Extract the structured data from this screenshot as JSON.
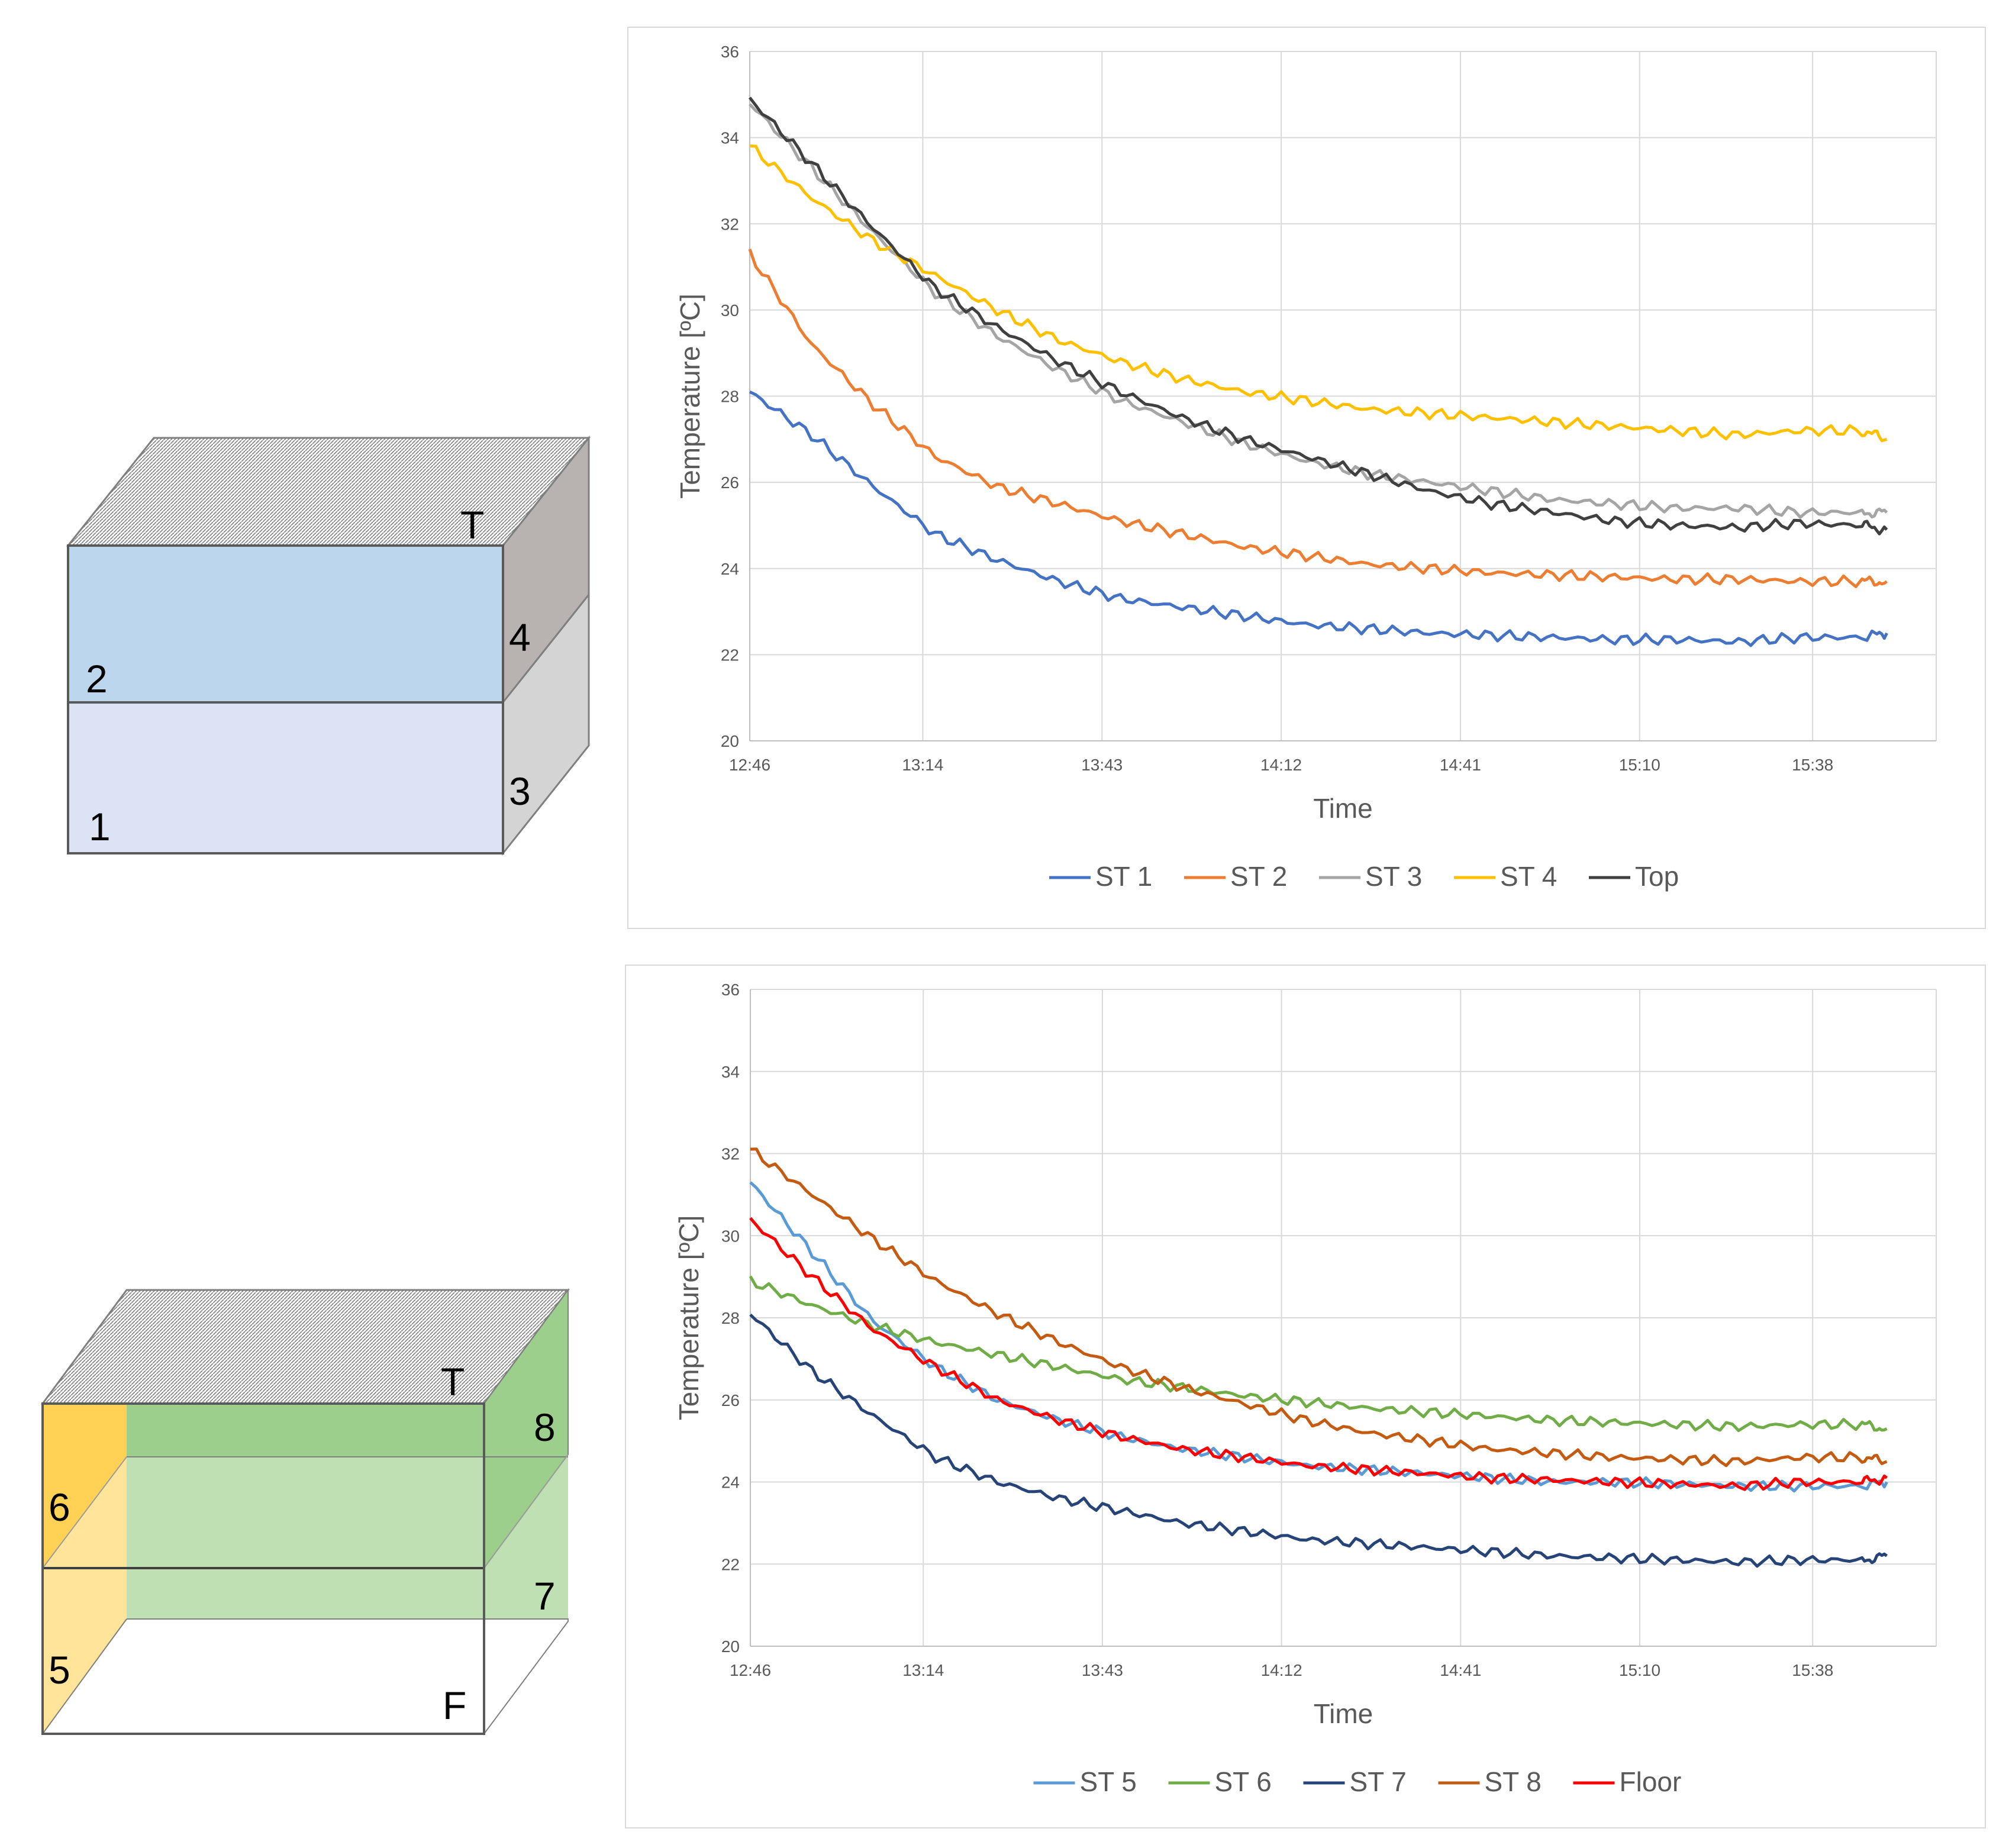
{
  "diagram_top": {
    "face_labels": [
      "T",
      "4",
      "2",
      "3",
      "1"
    ],
    "colors": {
      "front_upper": "#bcd6ee",
      "front_lower": "#dce3f4",
      "side_upper": "#b8b3b1",
      "side_lower": "#d4d4d4",
      "outline": "#595959"
    }
  },
  "diagram_bottom": {
    "face_labels": [
      "T",
      "8",
      "6",
      "7",
      "5",
      "F"
    ],
    "colors": {
      "green": "#9ccf8b",
      "green_light": "#bfe0b2",
      "yellow": "#ffd154",
      "yellow_light": "#ffe49a",
      "outline": "#595959"
    }
  },
  "chart_data": [
    {
      "type": "line",
      "title": "",
      "xlabel": "Time",
      "ylabel": "Temperature [ºC]",
      "ylim": [
        20,
        36
      ],
      "yticks": [
        20,
        22,
        24,
        26,
        28,
        30,
        32,
        34,
        36
      ],
      "xlim": [
        0,
        192
      ],
      "xtick_positions": [
        0,
        28,
        57,
        86,
        115,
        144,
        172
      ],
      "xtick_labels": [
        "12:46",
        "13:14",
        "13:43",
        "14:12",
        "14:41",
        "15:10",
        "15:38"
      ],
      "x": [
        0,
        10,
        20,
        30,
        40,
        50,
        60,
        70,
        80,
        90,
        100,
        110,
        120,
        130,
        140,
        150,
        160,
        170,
        180,
        184
      ],
      "series": [
        {
          "name": "ST 1",
          "color": "#4472c4",
          "values": [
            28.1,
            27.1,
            25.9,
            24.8,
            24.2,
            23.7,
            23.3,
            23.1,
            22.9,
            22.7,
            22.6,
            22.5,
            22.45,
            22.4,
            22.35,
            22.35,
            22.3,
            22.4,
            22.4,
            22.5
          ]
        },
        {
          "name": "ST 2",
          "color": "#ed7d31",
          "values": [
            31.3,
            29.2,
            27.8,
            26.6,
            25.9,
            25.5,
            25.1,
            24.8,
            24.5,
            24.3,
            24.1,
            24.0,
            23.9,
            23.85,
            23.8,
            23.75,
            23.75,
            23.7,
            23.7,
            23.7
          ]
        },
        {
          "name": "ST 3",
          "color": "#a5a5a5",
          "values": [
            34.8,
            33.3,
            31.8,
            30.4,
            29.4,
            28.6,
            27.9,
            27.4,
            26.9,
            26.5,
            26.2,
            26.0,
            25.8,
            25.6,
            25.5,
            25.4,
            25.4,
            25.3,
            25.3,
            25.3
          ]
        },
        {
          "name": "ST 4",
          "color": "#ffc000",
          "values": [
            33.8,
            32.6,
            31.6,
            30.8,
            30.0,
            29.3,
            28.8,
            28.4,
            28.1,
            27.9,
            27.7,
            27.6,
            27.5,
            27.4,
            27.3,
            27.2,
            27.1,
            27.2,
            27.2,
            27.0
          ]
        },
        {
          "name": "Top",
          "color": "#404040",
          "values": [
            34.9,
            33.4,
            31.9,
            30.5,
            29.6,
            28.8,
            28.1,
            27.5,
            27.0,
            26.6,
            26.2,
            25.8,
            25.5,
            25.3,
            25.1,
            25.0,
            24.95,
            25.05,
            25.0,
            24.9
          ]
        }
      ],
      "legend_position": "bottom"
    },
    {
      "type": "line",
      "title": "",
      "xlabel": "Time",
      "ylabel": "Temperature [ºC]",
      "ylim": [
        20,
        36
      ],
      "yticks": [
        20,
        22,
        24,
        26,
        28,
        30,
        32,
        34,
        36
      ],
      "xlim": [
        0,
        192
      ],
      "xtick_positions": [
        0,
        28,
        57,
        86,
        115,
        144,
        172
      ],
      "xtick_labels": [
        "12:46",
        "13:14",
        "13:43",
        "14:12",
        "14:41",
        "15:10",
        "15:38"
      ],
      "x": [
        0,
        10,
        20,
        30,
        40,
        50,
        60,
        70,
        80,
        90,
        100,
        110,
        120,
        130,
        140,
        150,
        160,
        170,
        180,
        184
      ],
      "series": [
        {
          "name": "ST 5",
          "color": "#5b9bd5",
          "values": [
            31.3,
            29.6,
            27.9,
            26.8,
            26.0,
            25.5,
            25.1,
            24.8,
            24.6,
            24.4,
            24.3,
            24.2,
            24.1,
            24.0,
            24.0,
            23.95,
            23.9,
            23.9,
            23.9,
            24.0
          ]
        },
        {
          "name": "ST 6",
          "color": "#70ad47",
          "values": [
            28.9,
            28.3,
            27.8,
            27.4,
            27.1,
            26.8,
            26.5,
            26.3,
            26.1,
            25.95,
            25.8,
            25.7,
            25.6,
            25.5,
            25.45,
            25.4,
            25.35,
            25.4,
            25.4,
            25.3
          ]
        },
        {
          "name": "ST 7",
          "color": "#264478",
          "values": [
            28.1,
            26.7,
            25.6,
            24.6,
            24.0,
            23.6,
            23.3,
            23.0,
            22.8,
            22.6,
            22.5,
            22.4,
            22.3,
            22.2,
            22.15,
            22.1,
            22.05,
            22.1,
            22.1,
            22.2
          ]
        },
        {
          "name": "ST 8",
          "color": "#c55a11",
          "values": [
            32.1,
            31.0,
            29.9,
            28.9,
            28.1,
            27.4,
            26.8,
            26.3,
            25.9,
            25.5,
            25.2,
            25.0,
            24.8,
            24.7,
            24.6,
            24.55,
            24.5,
            24.6,
            24.6,
            24.5
          ]
        },
        {
          "name": "Floor",
          "color": "#ff0000",
          "values": [
            30.4,
            29.0,
            27.7,
            26.8,
            26.0,
            25.5,
            25.1,
            24.8,
            24.6,
            24.4,
            24.3,
            24.2,
            24.1,
            24.05,
            24.0,
            23.95,
            23.9,
            24.0,
            24.0,
            24.1
          ]
        }
      ],
      "legend_position": "bottom"
    }
  ]
}
